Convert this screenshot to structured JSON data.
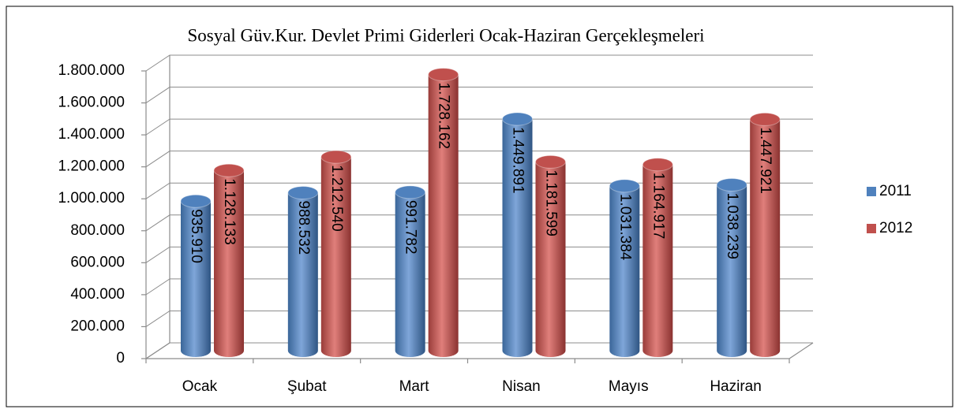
{
  "chart_data": {
    "type": "bar",
    "title": "Sosyal Güv.Kur. Devlet Primi Giderleri Ocak-Haziran Gerçekleşmeleri",
    "categories": [
      "Ocak",
      "Şubat",
      "Mart",
      "Nisan",
      "Mayıs",
      "Haziran"
    ],
    "series": [
      {
        "name": "2011",
        "color": "#4f81bd",
        "values": [
          935910,
          988532,
          991782,
          1449891,
          1031384,
          1038239
        ],
        "value_labels": [
          "935.910",
          "988.532",
          "991.782",
          "1.449.891",
          "1.031.384",
          "1.038.239"
        ]
      },
      {
        "name": "2012",
        "color": "#c0504d",
        "values": [
          1128133,
          1212540,
          1728162,
          1181599,
          1164917,
          1447921
        ],
        "value_labels": [
          "1.128.133",
          "1.212.540",
          "1.728.162",
          "1.181.599",
          "1.164.917",
          "1.447.921"
        ]
      }
    ],
    "ylim": [
      0,
      1800000
    ],
    "yticks": [
      0,
      {
        "value": 200000,
        "label": "200.000"
      },
      {
        "value": 400000,
        "label": "400.000"
      },
      {
        "value": 600000,
        "label": "600.000"
      },
      {
        "value": 800000,
        "label": "800.000"
      },
      {
        "value": 1000000,
        "label": "1.000.000"
      },
      {
        "value": 1200000,
        "label": "1.200.000"
      },
      {
        "value": 1400000,
        "label": "1.400.000"
      },
      {
        "value": 1600000,
        "label": "1.600.000"
      },
      {
        "value": 1800000,
        "label": "1.800.000"
      }
    ],
    "grid": true,
    "legend": "right"
  }
}
